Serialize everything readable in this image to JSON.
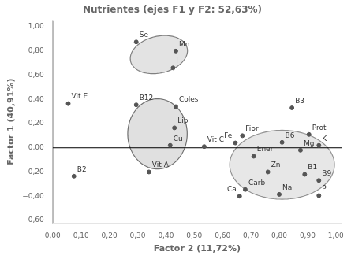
{
  "chart_data": {
    "type": "scatter",
    "title": "Nutrientes (ejes F1 y F2: 52,63%)",
    "xlabel": "Factor 2 (11,72%)",
    "ylabel": "Factor 1 (40,91%)",
    "labels": [
      "Se",
      "Mn",
      "I",
      "B12",
      "Coles",
      "Lip",
      "Cu",
      "Vit A",
      "Vit C",
      "Vit E",
      "B2",
      "B3",
      "Fibr",
      "Fe",
      "B6",
      "Prot",
      "K",
      "Mg",
      "Ener",
      "Zn",
      "B1",
      "B9",
      "Carb",
      "Ca",
      "Na",
      "P"
    ],
    "x": [
      0.295,
      0.435,
      0.425,
      0.295,
      0.435,
      0.43,
      0.415,
      0.34,
      0.535,
      0.055,
      0.075,
      0.845,
      0.67,
      0.645,
      0.81,
      0.905,
      0.94,
      0.875,
      0.71,
      0.76,
      0.89,
      0.94,
      0.68,
      0.66,
      0.8,
      0.94
    ],
    "values": [
      0.875,
      0.8,
      0.66,
      0.355,
      0.34,
      0.165,
      0.02,
      -0.2,
      0.01,
      0.365,
      -0.235,
      0.33,
      0.1,
      0.04,
      0.045,
      0.11,
      0.02,
      -0.02,
      -0.07,
      -0.2,
      -0.22,
      -0.27,
      -0.345,
      -0.4,
      -0.385,
      -0.395
    ],
    "color": "#555555",
    "ellipses": [
      {
        "cx": 0.375,
        "cy": 0.77,
        "width": 0.195,
        "height": 0.32,
        "angle": -12,
        "color": "#808080"
      },
      {
        "cx": 0.37,
        "cy": 0.115,
        "width": 0.21,
        "height": 0.58,
        "angle": 0,
        "color": "#707070"
      },
      {
        "cx": 0.81,
        "cy": -0.14,
        "width": 0.37,
        "height": 0.57,
        "angle": 0,
        "color": "#909090"
      }
    ],
    "hlines": [
      0
    ],
    "vlines": [
      0
    ],
    "xlim": [
      0.0,
      1.02
    ],
    "ylim": [
      -0.62,
      1.05
    ],
    "xticks": [
      {
        "value": 0.0,
        "label": "0,00"
      },
      {
        "value": 0.1,
        "label": "0,10"
      },
      {
        "value": 0.2,
        "label": "0,20"
      },
      {
        "value": 0.3,
        "label": "0,30"
      },
      {
        "value": 0.4,
        "label": "0,40"
      },
      {
        "value": 0.5,
        "label": "0,50"
      },
      {
        "value": 0.6,
        "label": "0,60"
      },
      {
        "value": 0.7,
        "label": "0,70"
      },
      {
        "value": 0.8,
        "label": "0,80"
      },
      {
        "value": 0.9,
        "label": "0,90"
      },
      {
        "value": 1.0,
        "label": "1,00"
      }
    ],
    "yticks": [
      {
        "value": -0.6,
        "label": "−0,60"
      },
      {
        "value": -0.4,
        "label": "−0,40"
      },
      {
        "value": -0.2,
        "label": "−0,20"
      },
      {
        "value": 0.0,
        "label": "0,00"
      },
      {
        "value": 0.2,
        "label": "0,20"
      },
      {
        "value": 0.4,
        "label": "0,40"
      },
      {
        "value": 0.6,
        "label": "0,60"
      },
      {
        "value": 0.8,
        "label": "0,80"
      },
      {
        "value": 1.0,
        "label": "1,00"
      }
    ],
    "grid": false
  }
}
